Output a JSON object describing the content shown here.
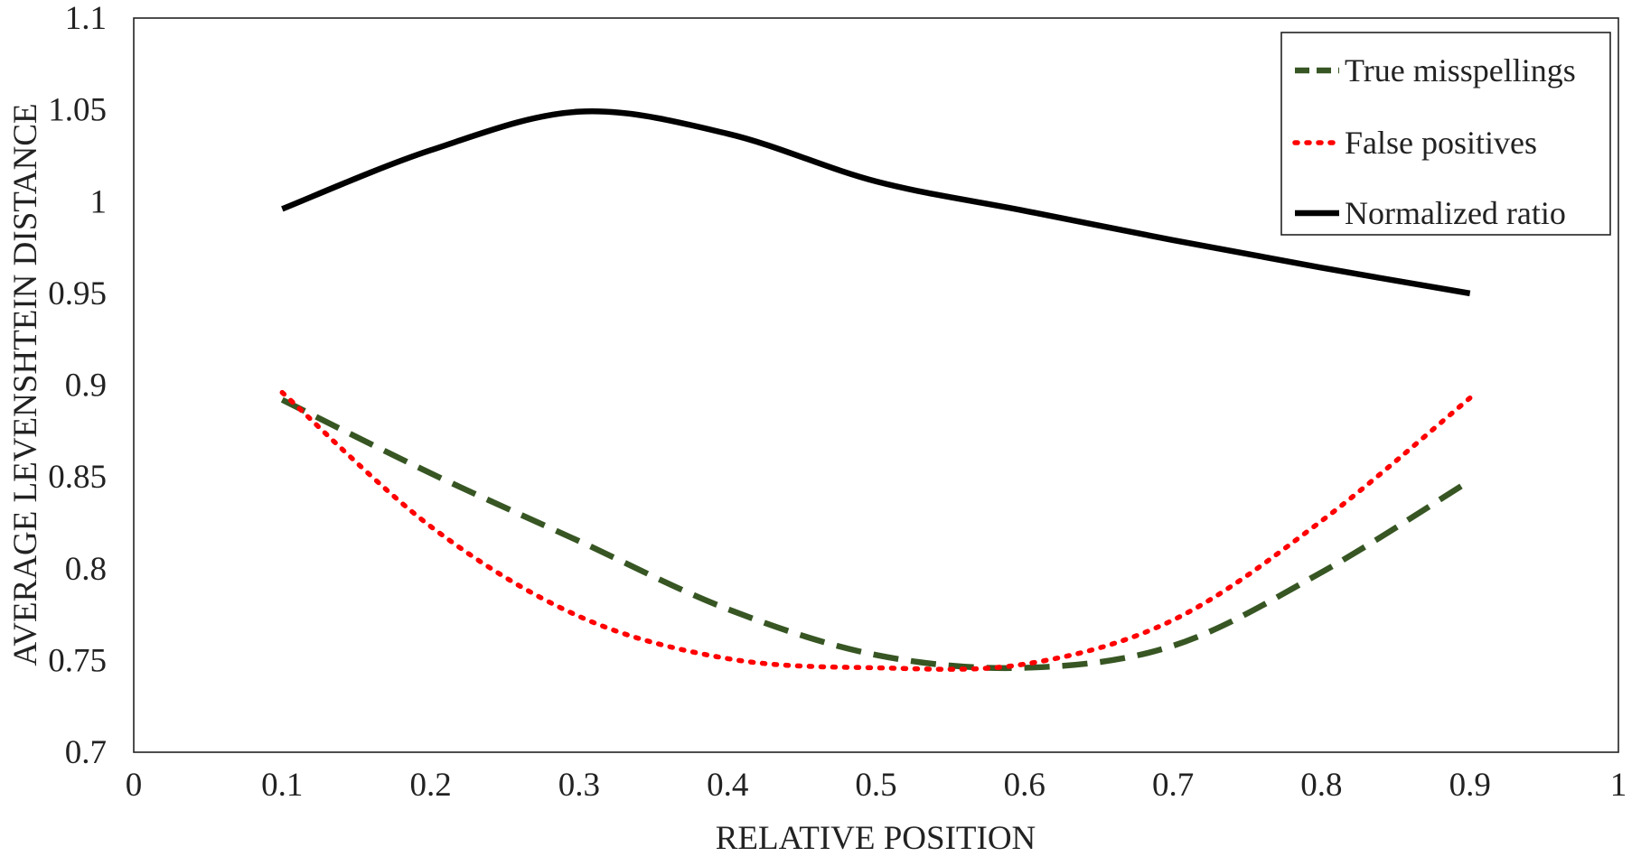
{
  "chart_data": {
    "type": "line",
    "title": "",
    "xlabel": "RELATIVE POSITION",
    "ylabel": "AVERAGE LEVENSHTEIN DISTANCE",
    "xlim": [
      0,
      1
    ],
    "ylim": [
      0.7,
      1.1
    ],
    "x_ticks": [
      0,
      0.1,
      0.2,
      0.3,
      0.4,
      0.5,
      0.6,
      0.7,
      0.8,
      0.9,
      1
    ],
    "x_tick_labels": [
      "0",
      "0.1",
      "0.2",
      "0.3",
      "0.4",
      "0.5",
      "0.6",
      "0.7",
      "0.8",
      "0.9",
      "1"
    ],
    "y_ticks": [
      0.7,
      0.75,
      0.8,
      0.85,
      0.9,
      0.95,
      1,
      1.05,
      1.1
    ],
    "y_tick_labels": [
      "0.7",
      "0.75",
      "0.8",
      "0.85",
      "0.9",
      "0.95",
      "1",
      "1.05",
      "1.1"
    ],
    "grid": false,
    "legend_position": "top-right",
    "series": [
      {
        "name": "True misspellings",
        "color": "#375623",
        "style": "dashed",
        "x": [
          0.1,
          0.2,
          0.3,
          0.4,
          0.5,
          0.6,
          0.7,
          0.8,
          0.9
        ],
        "y": [
          0.892,
          0.852,
          0.815,
          0.778,
          0.753,
          0.746,
          0.758,
          0.798,
          0.848
        ]
      },
      {
        "name": "False positives",
        "color": "#ff0000",
        "style": "dotted",
        "x": [
          0.1,
          0.2,
          0.3,
          0.4,
          0.5,
          0.6,
          0.7,
          0.8,
          0.9
        ],
        "y": [
          0.896,
          0.823,
          0.774,
          0.751,
          0.746,
          0.748,
          0.772,
          0.826,
          0.893
        ]
      },
      {
        "name": "Normalized ratio",
        "color": "#000000",
        "style": "solid",
        "x": [
          0.1,
          0.2,
          0.3,
          0.4,
          0.5,
          0.6,
          0.7,
          0.8,
          0.9
        ],
        "y": [
          0.996,
          1.028,
          1.049,
          1.037,
          1.011,
          0.995,
          0.979,
          0.964,
          0.95
        ]
      }
    ]
  }
}
